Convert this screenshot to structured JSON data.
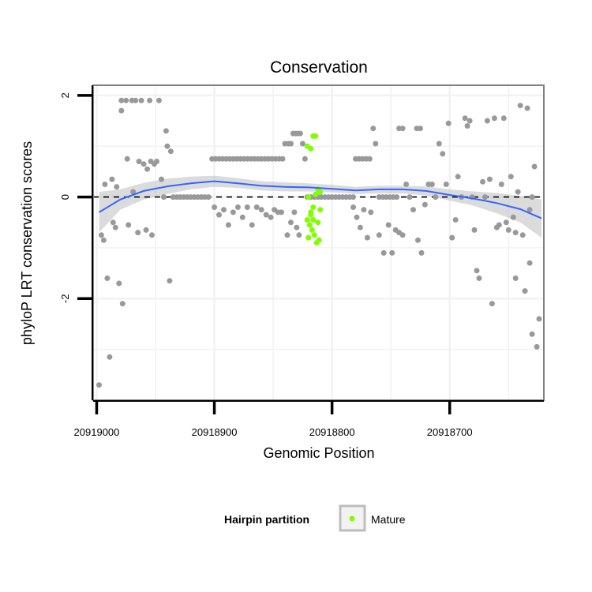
{
  "chart_data": {
    "type": "scatter",
    "title": "Conservation",
    "xlabel": "Genomic Position",
    "ylabel": "phyloP LRT conservation scores",
    "x_reversed": true,
    "xlim": [
      20919003,
      20918620
    ],
    "ylim": [
      -4.0,
      2.2
    ],
    "x_ticks": [
      20919000,
      20918900,
      20918800,
      20918700
    ],
    "y_ticks": [
      2,
      0,
      -2
    ],
    "grid": true,
    "reference_line": {
      "y": 0,
      "style": "dashed",
      "color": "#000000"
    },
    "legend": {
      "title": "Hairpin partition",
      "position": "bottom",
      "entries": [
        "Mature"
      ]
    },
    "colors": {
      "other": "#999999",
      "mature": "#7FFF00",
      "smooth": "#3366FF",
      "band": "#BEBEBE"
    },
    "series": [
      {
        "name": "",
        "color": "#999999",
        "points": [
          [
            20918998,
            -3.7
          ],
          [
            20918996,
            -0.75
          ],
          [
            20918994,
            -0.85
          ],
          [
            20918993,
            0.25
          ],
          [
            20918991,
            -1.6
          ],
          [
            20918989,
            -3.15
          ],
          [
            20918987,
            0.35
          ],
          [
            20918986,
            -0.5
          ],
          [
            20918984,
            -0.6
          ],
          [
            20918983,
            0.2
          ],
          [
            20918981,
            -1.7
          ],
          [
            20918979,
            1.7
          ],
          [
            20918979,
            1.9
          ],
          [
            20918978,
            -2.1
          ],
          [
            20918975,
            1.9
          ],
          [
            20918974,
            0.75
          ],
          [
            20918973,
            -0.55
          ],
          [
            20918970,
            1.9
          ],
          [
            20918969,
            0.1
          ],
          [
            20918967,
            1.9
          ],
          [
            20918965,
            -0.7
          ],
          [
            20918964,
            0.7
          ],
          [
            20918962,
            1.9
          ],
          [
            20918960,
            0.65
          ],
          [
            20918958,
            -0.65
          ],
          [
            20918957,
            0.55
          ],
          [
            20918955,
            1.9
          ],
          [
            20918954,
            0.7
          ],
          [
            20918953,
            -0.75
          ],
          [
            20918951,
            0.65
          ],
          [
            20918949,
            0.7
          ],
          [
            20918947,
            1.9
          ],
          [
            20918945,
            0.35
          ],
          [
            20918943,
            0.0
          ],
          [
            20918941,
            1.3
          ],
          [
            20918940,
            1.0
          ],
          [
            20918938,
            -1.65
          ],
          [
            20918937,
            0.9
          ],
          [
            20918935,
            0.0
          ],
          [
            20918932,
            0.0
          ],
          [
            20918929,
            0.0
          ],
          [
            20918926,
            0.0
          ],
          [
            20918923,
            0.0
          ],
          [
            20918920,
            0.0
          ],
          [
            20918917,
            0.0
          ],
          [
            20918914,
            0.0
          ],
          [
            20918911,
            0.0
          ],
          [
            20918908,
            0.0
          ],
          [
            20918905,
            0.0
          ],
          [
            20918902,
            0.75
          ],
          [
            20918899,
            0.75
          ],
          [
            20918896,
            0.75
          ],
          [
            20918893,
            0.75
          ],
          [
            20918890,
            0.75
          ],
          [
            20918887,
            0.75
          ],
          [
            20918884,
            0.75
          ],
          [
            20918881,
            0.75
          ],
          [
            20918878,
            0.75
          ],
          [
            20918875,
            0.75
          ],
          [
            20918872,
            0.75
          ],
          [
            20918869,
            0.75
          ],
          [
            20918866,
            0.75
          ],
          [
            20918863,
            0.75
          ],
          [
            20918860,
            0.75
          ],
          [
            20918857,
            0.75
          ],
          [
            20918854,
            0.75
          ],
          [
            20918851,
            0.75
          ],
          [
            20918848,
            0.75
          ],
          [
            20918845,
            0.75
          ],
          [
            20918842,
            0.75
          ],
          [
            20918900,
            -0.2
          ],
          [
            20918896,
            -0.35
          ],
          [
            20918892,
            -0.25
          ],
          [
            20918888,
            -0.55
          ],
          [
            20918884,
            -0.3
          ],
          [
            20918880,
            -0.2
          ],
          [
            20918876,
            -0.4
          ],
          [
            20918872,
            -0.2
          ],
          [
            20918868,
            -0.55
          ],
          [
            20918864,
            -0.2
          ],
          [
            20918860,
            -0.25
          ],
          [
            20918856,
            -0.35
          ],
          [
            20918852,
            -0.4
          ],
          [
            20918849,
            -0.25
          ],
          [
            20918846,
            -0.3
          ],
          [
            20918843,
            -0.3
          ],
          [
            20918840,
            1.05
          ],
          [
            20918837,
            1.05
          ],
          [
            20918835,
            1.05
          ],
          [
            20918833,
            1.25
          ],
          [
            20918831,
            1.25
          ],
          [
            20918829,
            1.25
          ],
          [
            20918827,
            1.25
          ],
          [
            20918838,
            -0.75
          ],
          [
            20918835,
            -0.5
          ],
          [
            20918832,
            -0.3
          ],
          [
            20918830,
            -0.6
          ],
          [
            20918828,
            -0.75
          ],
          [
            20918825,
            1.05
          ],
          [
            20918823,
            0.75
          ],
          [
            20918821,
            0.0
          ],
          [
            20918818,
            0.0
          ],
          [
            20918815,
            0.0
          ],
          [
            20918812,
            0.0
          ],
          [
            20918809,
            0.0
          ],
          [
            20918806,
            0.0
          ],
          [
            20918803,
            0.0
          ],
          [
            20918800,
            0.0
          ],
          [
            20918797,
            0.0
          ],
          [
            20918794,
            0.0
          ],
          [
            20918791,
            0.0
          ],
          [
            20918788,
            0.0
          ],
          [
            20918785,
            0.0
          ],
          [
            20918782,
            0.0
          ],
          [
            20918780,
            0.75
          ],
          [
            20918777,
            0.75
          ],
          [
            20918774,
            0.75
          ],
          [
            20918771,
            0.75
          ],
          [
            20918768,
            0.75
          ],
          [
            20918782,
            -0.2
          ],
          [
            20918779,
            -0.4
          ],
          [
            20918776,
            -0.6
          ],
          [
            20918773,
            -0.25
          ],
          [
            20918770,
            -0.8
          ],
          [
            20918767,
            -0.3
          ],
          [
            20918765,
            1.35
          ],
          [
            20918763,
            1.05
          ],
          [
            20918760,
            0.0
          ],
          [
            20918757,
            0.0
          ],
          [
            20918754,
            0.0
          ],
          [
            20918751,
            0.0
          ],
          [
            20918748,
            0.0
          ],
          [
            20918745,
            0.0
          ],
          [
            20918743,
            1.35
          ],
          [
            20918740,
            1.35
          ],
          [
            20918760,
            -0.75
          ],
          [
            20918756,
            -1.1
          ],
          [
            20918752,
            -0.55
          ],
          [
            20918749,
            -1.1
          ],
          [
            20918746,
            -0.65
          ],
          [
            20918743,
            -0.7
          ],
          [
            20918740,
            -0.75
          ],
          [
            20918737,
            0.25
          ],
          [
            20918734,
            0.0
          ],
          [
            20918731,
            -0.25
          ],
          [
            20918728,
            1.35
          ],
          [
            20918725,
            1.35
          ],
          [
            20918727,
            -0.85
          ],
          [
            20918724,
            -1.1
          ],
          [
            20918721,
            -0.15
          ],
          [
            20918718,
            0.25
          ],
          [
            20918715,
            0.25
          ],
          [
            20918712,
            0.0
          ],
          [
            20918709,
            1.05
          ],
          [
            20918706,
            0.85
          ],
          [
            20918703,
            0.25
          ],
          [
            20918701,
            1.45
          ],
          [
            20918698,
            -0.8
          ],
          [
            20918695,
            -0.45
          ],
          [
            20918693,
            0.4
          ],
          [
            20918690,
            0.0
          ],
          [
            20918687,
            1.55
          ],
          [
            20918685,
            1.4
          ],
          [
            20918683,
            1.5
          ],
          [
            20918681,
            0.0
          ],
          [
            20918679,
            -0.65
          ],
          [
            20918677,
            -1.45
          ],
          [
            20918675,
            -1.6
          ],
          [
            20918672,
            0.3
          ],
          [
            20918670,
            0.0
          ],
          [
            20918668,
            1.5
          ],
          [
            20918666,
            0.35
          ],
          [
            20918664,
            -2.1
          ],
          [
            20918662,
            1.55
          ],
          [
            20918660,
            -0.6
          ],
          [
            20918658,
            -0.55
          ],
          [
            20918656,
            0.25
          ],
          [
            20918654,
            1.55
          ],
          [
            20918652,
            -0.5
          ],
          [
            20918650,
            -0.65
          ],
          [
            20918648,
            0.4
          ],
          [
            20918646,
            -0.4
          ],
          [
            20918644,
            -0.7
          ],
          [
            20918642,
            0.1
          ],
          [
            20918640,
            1.8
          ],
          [
            20918638,
            -0.75
          ],
          [
            20918636,
            -1.85
          ],
          [
            20918634,
            1.75
          ],
          [
            20918632,
            -0.25
          ],
          [
            20918630,
            -2.7
          ],
          [
            20918628,
            0.6
          ],
          [
            20918626,
            -2.95
          ],
          [
            20918624,
            -2.4
          ],
          [
            20918644,
            -1.6
          ],
          [
            20918632,
            -1.3
          ],
          [
            20918630,
            0.0
          ]
        ]
      },
      {
        "name": "Mature",
        "color": "#7FFF00",
        "points": [
          [
            20918821,
            1.0
          ],
          [
            20918818,
            0.95
          ],
          [
            20918816,
            1.2
          ],
          [
            20918814,
            1.2
          ],
          [
            20918820,
            0.0
          ],
          [
            20918818,
            -0.35
          ],
          [
            20918816,
            -0.45
          ],
          [
            20918814,
            0.05
          ],
          [
            20918812,
            0.15
          ],
          [
            20918810,
            -0.25
          ],
          [
            20918821,
            -0.45
          ],
          [
            20918819,
            -0.55
          ],
          [
            20918817,
            -0.65
          ],
          [
            20918815,
            -0.75
          ],
          [
            20918813,
            -0.9
          ],
          [
            20918811,
            -0.85
          ],
          [
            20918820,
            -0.8
          ],
          [
            20918818,
            -0.3
          ],
          [
            20918812,
            -0.5
          ],
          [
            20918810,
            0.1
          ],
          [
            20918816,
            -0.2
          ]
        ]
      }
    ],
    "smooth": {
      "name": "",
      "color": "#3366FF",
      "x": [
        20918998,
        20918980,
        20918960,
        20918940,
        20918920,
        20918900,
        20918880,
        20918860,
        20918840,
        20918820,
        20918800,
        20918780,
        20918760,
        20918740,
        20918720,
        20918700,
        20918680,
        20918660,
        20918640,
        20918622
      ],
      "y": [
        -0.3,
        -0.05,
        0.12,
        0.21,
        0.27,
        0.31,
        0.27,
        0.22,
        0.2,
        0.19,
        0.16,
        0.13,
        0.15,
        0.15,
        0.12,
        0.04,
        -0.03,
        -0.12,
        -0.24,
        -0.42
      ],
      "band_low": [
        -0.7,
        -0.25,
        -0.05,
        0.06,
        0.15,
        0.2,
        0.18,
        0.13,
        0.11,
        0.11,
        0.09,
        0.06,
        0.07,
        0.07,
        0.03,
        -0.07,
        -0.17,
        -0.32,
        -0.5,
        -0.8
      ],
      "band_high": [
        0.1,
        0.15,
        0.28,
        0.36,
        0.4,
        0.42,
        0.37,
        0.31,
        0.29,
        0.27,
        0.24,
        0.2,
        0.22,
        0.22,
        0.21,
        0.15,
        0.11,
        0.08,
        0.02,
        -0.05
      ]
    }
  }
}
